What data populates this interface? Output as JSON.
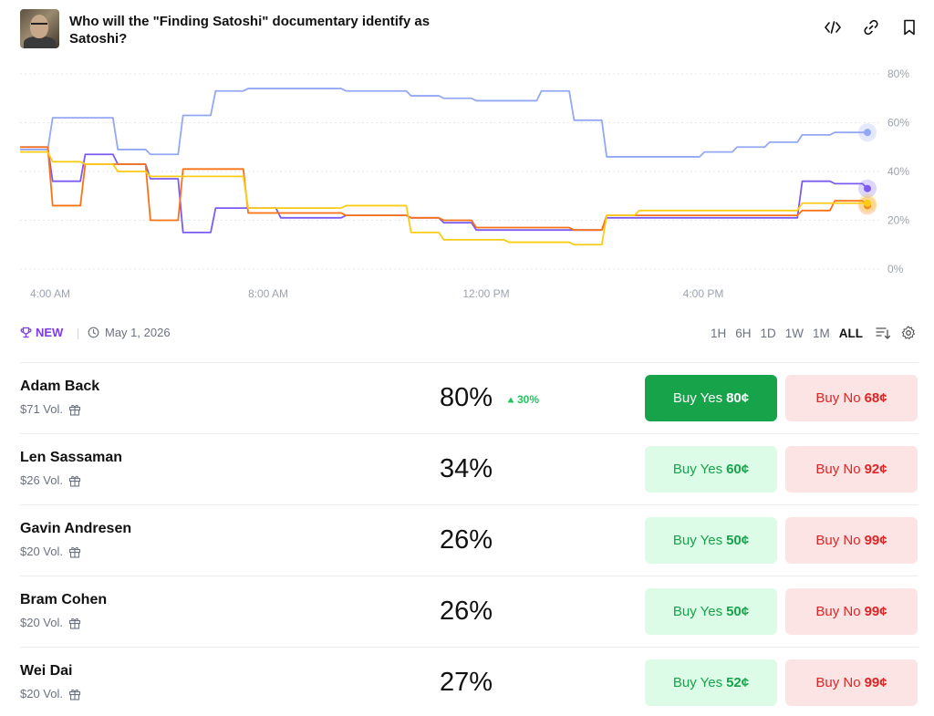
{
  "header": {
    "title": "Who will the \"Finding Satoshi\" documentary identify as Satoshi?",
    "icons": [
      "embed-icon",
      "link-icon",
      "bookmark-icon"
    ]
  },
  "chart_data": {
    "type": "line",
    "x_tick_labels": [
      "4:00 AM",
      "8:00 AM",
      "12:00 PM",
      "4:00 PM"
    ],
    "y_tick_labels": [
      "80%",
      "60%",
      "40%",
      "20%",
      "0%"
    ],
    "ylim": [
      0,
      80
    ],
    "grid": true,
    "series": [
      {
        "color": "#93a8f5",
        "values": [
          49,
          62,
          62,
          49,
          47,
          63,
          73,
          74,
          74,
          74,
          73,
          73,
          71,
          70,
          69,
          69,
          73,
          61,
          46,
          46,
          46,
          48,
          50,
          52,
          55,
          56,
          56
        ]
      },
      {
        "color": "#7c5cf0",
        "values": [
          50,
          36,
          47,
          43,
          37,
          15,
          25,
          25,
          21,
          21,
          22,
          22,
          21,
          19,
          16,
          16,
          16,
          16,
          21,
          21,
          21,
          21,
          21,
          21,
          36,
          35,
          33
        ]
      },
      {
        "color": "#f97316",
        "values": [
          50,
          26,
          43,
          43,
          20,
          41,
          41,
          23,
          23,
          23,
          22,
          22,
          21,
          20,
          17,
          17,
          17,
          16,
          22,
          22,
          22,
          22,
          22,
          22,
          24,
          28,
          26
        ]
      },
      {
        "color": "#facc15",
        "values": [
          48,
          44,
          43,
          40,
          38,
          38,
          38,
          25,
          25,
          25,
          26,
          26,
          15,
          12,
          12,
          11,
          11,
          10,
          22,
          24,
          24,
          24,
          24,
          24,
          27,
          27,
          27
        ]
      }
    ]
  },
  "meta": {
    "new_label": "NEW",
    "date": "May 1, 2026",
    "timeframes": [
      "1H",
      "6H",
      "1D",
      "1W",
      "1M",
      "ALL"
    ],
    "active_timeframe": "ALL"
  },
  "outcomes": [
    {
      "name": "Adam Back",
      "volume": "$71 Vol.",
      "percent": "80%",
      "change": "30%",
      "yes_label": "Buy Yes",
      "yes_price": "80¢",
      "no_label": "Buy No",
      "no_price": "68¢"
    },
    {
      "name": "Len Sassaman",
      "volume": "$26 Vol.",
      "percent": "34%",
      "change": "",
      "yes_label": "Buy Yes",
      "yes_price": "60¢",
      "no_label": "Buy No",
      "no_price": "92¢"
    },
    {
      "name": "Gavin Andresen",
      "volume": "$20 Vol.",
      "percent": "26%",
      "change": "",
      "yes_label": "Buy Yes",
      "yes_price": "50¢",
      "no_label": "Buy No",
      "no_price": "99¢"
    },
    {
      "name": "Bram Cohen",
      "volume": "$20 Vol.",
      "percent": "26%",
      "change": "",
      "yes_label": "Buy Yes",
      "yes_price": "50¢",
      "no_label": "Buy No",
      "no_price": "99¢"
    },
    {
      "name": "Wei Dai",
      "volume": "$20 Vol.",
      "percent": "27%",
      "change": "",
      "yes_label": "Buy Yes",
      "yes_price": "52¢",
      "no_label": "Buy No",
      "no_price": "99¢"
    }
  ],
  "colors": {
    "accent": "#7c3aed",
    "yes": "#16a34a",
    "no": "#dc2626"
  }
}
